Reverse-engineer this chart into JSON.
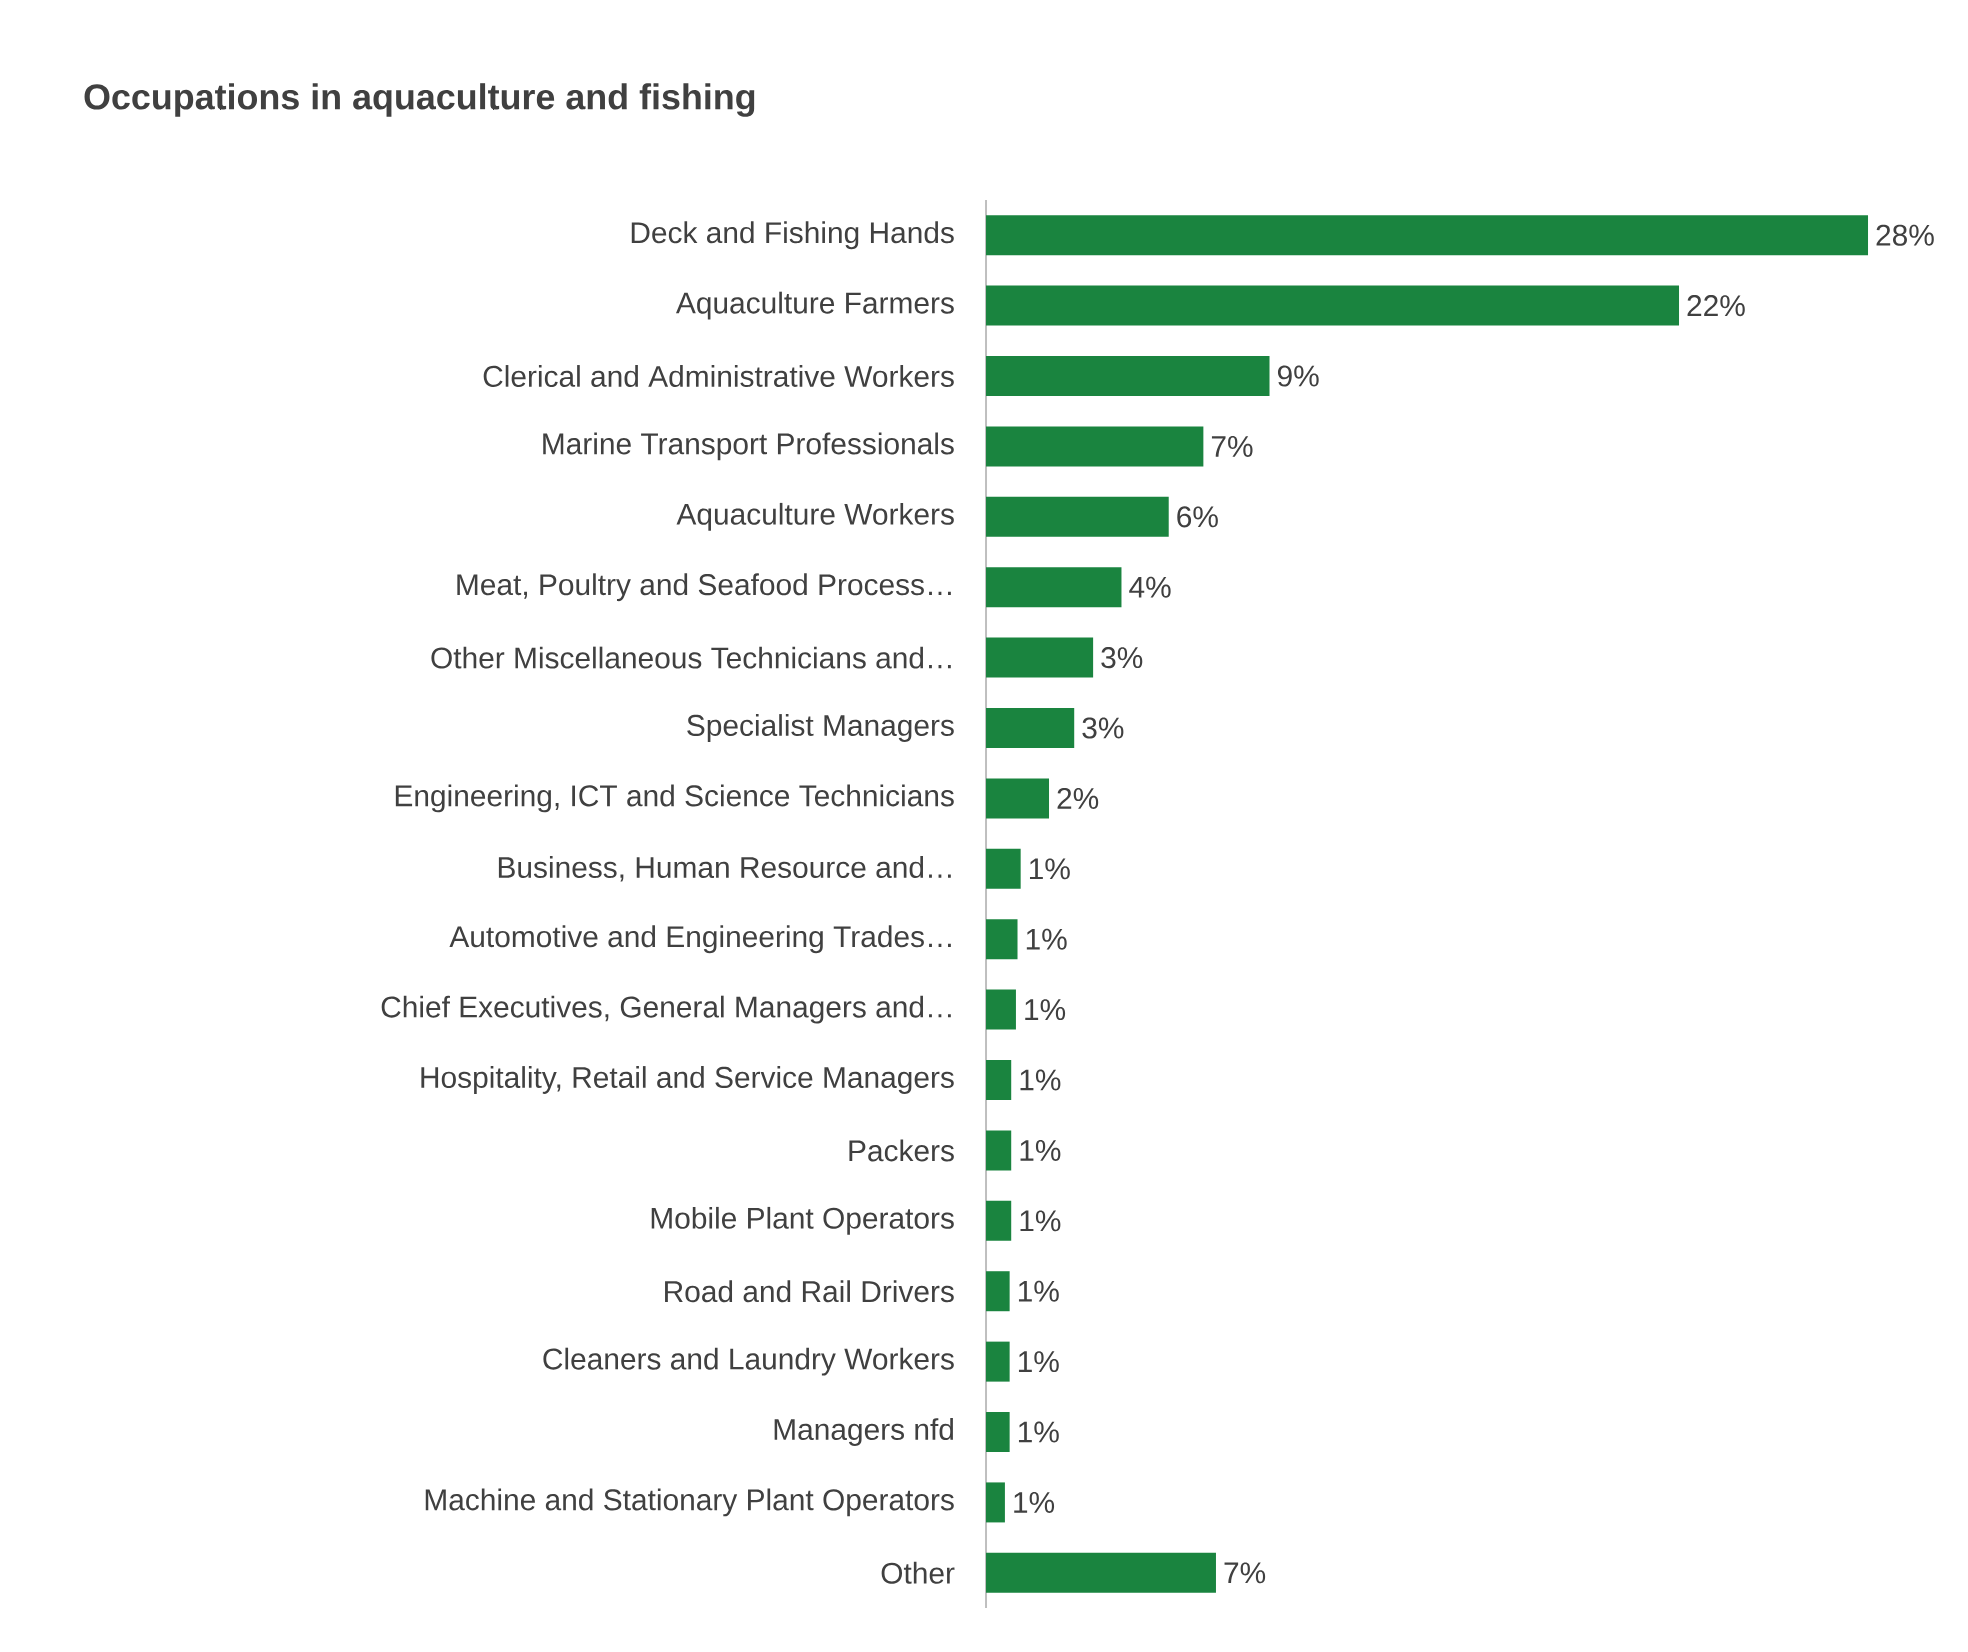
{
  "chart_data": {
    "type": "bar",
    "orientation": "horizontal",
    "title": "Occupations in aquaculture and fishing",
    "categories": [
      "Deck and Fishing Hands",
      "Aquaculture Farmers",
      "Clerical and Administrative Workers",
      "Marine Transport Professionals",
      "Aquaculture Workers",
      "Meat, Poultry and Seafood Process…",
      "Other Miscellaneous Technicians and…",
      "Specialist Managers",
      "Engineering, ICT and Science Technicians",
      "Business, Human Resource and…",
      "Automotive and Engineering Trades…",
      "Chief Executives, General Managers and…",
      "Hospitality, Retail and Service Managers",
      "Packers",
      "Mobile Plant Operators",
      "Road and Rail Drivers",
      "Cleaners and Laundry Workers",
      "Managers nfd",
      "Machine and Stationary Plant Operators",
      "Other"
    ],
    "values": [
      28,
      22,
      9,
      6.9,
      5.8,
      4.3,
      3.4,
      2.8,
      2,
      1.1,
      1,
      0.95,
      0.8,
      0.8,
      0.8,
      0.75,
      0.75,
      0.75,
      0.6,
      7.3
    ],
    "value_labels": [
      "28%",
      "22%",
      "9%",
      "7%",
      "6%",
      "4%",
      "3%",
      "3%",
      "2%",
      "1%",
      "1%",
      "1%",
      "1%",
      "1%",
      "1%",
      "1%",
      "1%",
      "1%",
      "1%",
      "7%"
    ],
    "color": "#1a843f"
  }
}
